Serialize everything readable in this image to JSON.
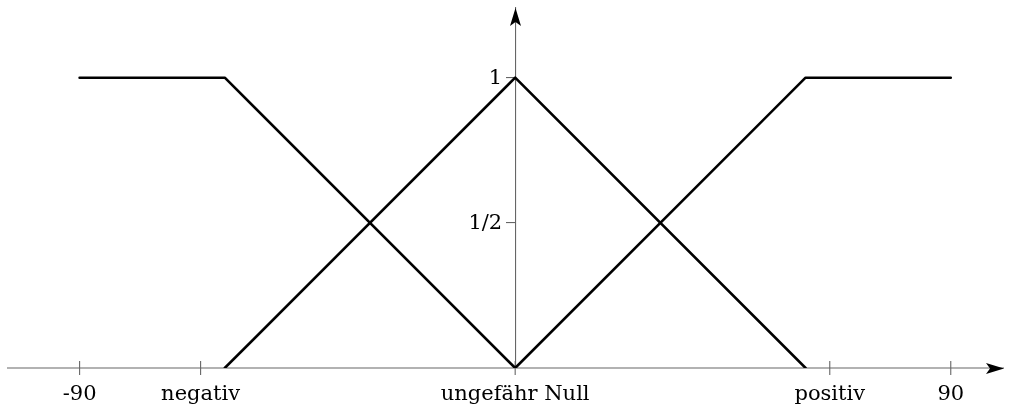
{
  "chart_data": {
    "type": "line",
    "xlim": [
      -105,
      101
    ],
    "ylim": [
      0,
      1.24
    ],
    "xticks": [
      -90,
      {
        "value": -65,
        "label": "negativ"
      },
      {
        "value": 0,
        "label": "ungefähr Null"
      },
      {
        "value": 65,
        "label": "positiv"
      },
      90
    ],
    "yticks": [
      {
        "value": 0.5,
        "label": "1/2"
      },
      1
    ],
    "grid": false,
    "legend": false,
    "marker": "none",
    "line_style": "solid",
    "series": [
      {
        "color": "#000000",
        "x": [
          -90,
          -60,
          0
        ],
        "values": [
          1,
          1,
          0
        ]
      },
      {
        "color": "#000000",
        "x": [
          -60,
          0,
          60
        ],
        "values": [
          0,
          1,
          0
        ]
      },
      {
        "color": "#000000",
        "x": [
          0,
          60,
          90
        ],
        "values": [
          0,
          1,
          1
        ]
      }
    ]
  }
}
